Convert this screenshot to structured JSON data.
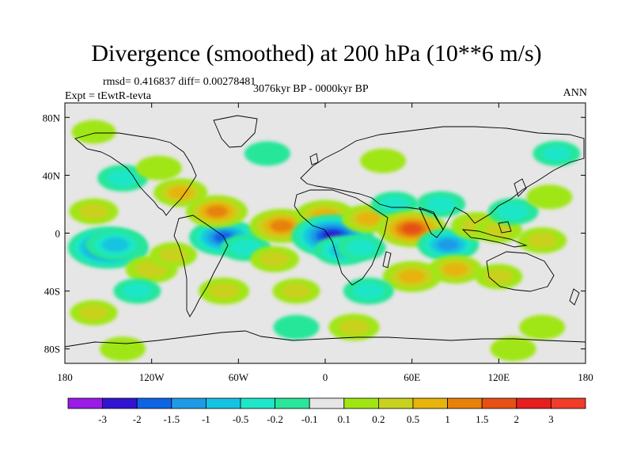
{
  "chart_data": {
    "type": "heatmap",
    "title": "Divergence (smoothed) at 200 hPa (10**6 m/s)",
    "subtitle_stats": "rmsd= 0.416837 diff= 0.00278481",
    "period": "3076kyr BP - 0000kyr BP",
    "experiment": "Expt = tEwtR-tevta",
    "season": "ANN",
    "x_ticks": [
      "180",
      "120W",
      "60W",
      "0",
      "60E",
      "120E",
      "180"
    ],
    "x_tick_values": [
      -180,
      -120,
      -60,
      0,
      60,
      120,
      180
    ],
    "y_ticks": [
      "80N",
      "40N",
      "0",
      "40S",
      "80S"
    ],
    "y_tick_values": [
      80,
      40,
      0,
      -40,
      -80
    ],
    "xlim": [
      -180,
      180
    ],
    "ylim": [
      -90,
      90
    ],
    "colorbar": {
      "levels": [
        "-3",
        "-2",
        "-1.5",
        "-1",
        "-0.5",
        "-0.2",
        "-0.1",
        "0.1",
        "0.2",
        "0.5",
        "1",
        "1.5",
        "2",
        "3"
      ],
      "colors": [
        "#9a1ae6",
        "#3214d2",
        "#0f64e6",
        "#1e9be6",
        "#14c3e1",
        "#1ee6c8",
        "#28e69a",
        "#e6e6e6",
        "#a0e614",
        "#c8d21e",
        "#e6b40a",
        "#e6820a",
        "#e65014",
        "#e61e1e",
        "#f03c28"
      ]
    },
    "anomalies": [
      {
        "lon": -150,
        "lat": -10,
        "value": -2.5
      },
      {
        "lon": -145,
        "lat": -8,
        "value": -1.2
      },
      {
        "lon": -120,
        "lat": -25,
        "value": 0.7
      },
      {
        "lon": -105,
        "lat": -15,
        "value": 0.4
      },
      {
        "lon": -70,
        "lat": -3,
        "value": -1.8
      },
      {
        "lon": -55,
        "lat": -10,
        "value": -0.6
      },
      {
        "lon": -75,
        "lat": 15,
        "value": 1.3
      },
      {
        "lon": -160,
        "lat": 15,
        "value": 0.5
      },
      {
        "lon": -140,
        "lat": 38,
        "value": -0.6
      },
      {
        "lon": -115,
        "lat": 45,
        "value": 0.3
      },
      {
        "lon": -100,
        "lat": 28,
        "value": 0.8
      },
      {
        "lon": -35,
        "lat": -18,
        "value": 0.5
      },
      {
        "lon": -30,
        "lat": 5,
        "value": 1.5
      },
      {
        "lon": 0,
        "lat": 12,
        "value": 1.2
      },
      {
        "lon": 5,
        "lat": -2,
        "value": -2.6
      },
      {
        "lon": 12,
        "lat": -12,
        "value": -1.0
      },
      {
        "lon": 25,
        "lat": -10,
        "value": -0.5
      },
      {
        "lon": 30,
        "lat": 10,
        "value": 0.8
      },
      {
        "lon": 48,
        "lat": 20,
        "value": -0.4
      },
      {
        "lon": 60,
        "lat": 3,
        "value": 1.8
      },
      {
        "lon": 85,
        "lat": -8,
        "value": -1.3
      },
      {
        "lon": 80,
        "lat": 20,
        "value": -0.5
      },
      {
        "lon": 105,
        "lat": 5,
        "value": 0.7
      },
      {
        "lon": 120,
        "lat": 2,
        "value": 0.4
      },
      {
        "lon": 130,
        "lat": 15,
        "value": -0.6
      },
      {
        "lon": 155,
        "lat": 25,
        "value": 0.3
      },
      {
        "lon": 150,
        "lat": -5,
        "value": 0.5
      },
      {
        "lon": 120,
        "lat": -30,
        "value": 0.4
      },
      {
        "lon": 90,
        "lat": -25,
        "value": 0.8
      },
      {
        "lon": 60,
        "lat": -30,
        "value": 1.1
      },
      {
        "lon": 30,
        "lat": -40,
        "value": -0.6
      },
      {
        "lon": -70,
        "lat": -40,
        "value": 0.6
      },
      {
        "lon": -130,
        "lat": -40,
        "value": -0.4
      },
      {
        "lon": -20,
        "lat": -40,
        "value": 0.4
      },
      {
        "lon": -160,
        "lat": -55,
        "value": 0.4
      },
      {
        "lon": 20,
        "lat": -65,
        "value": 0.6
      },
      {
        "lon": -20,
        "lat": -65,
        "value": -0.3
      },
      {
        "lon": 150,
        "lat": -65,
        "value": 0.3
      },
      {
        "lon": -140,
        "lat": -80,
        "value": 0.3
      },
      {
        "lon": 130,
        "lat": -80,
        "value": 0.3
      },
      {
        "lon": 40,
        "lat": 50,
        "value": 0.3
      },
      {
        "lon": 160,
        "lat": 55,
        "value": -0.4
      },
      {
        "lon": -40,
        "lat": 55,
        "value": -0.3
      },
      {
        "lon": -160,
        "lat": 70,
        "value": 0.2
      }
    ]
  }
}
